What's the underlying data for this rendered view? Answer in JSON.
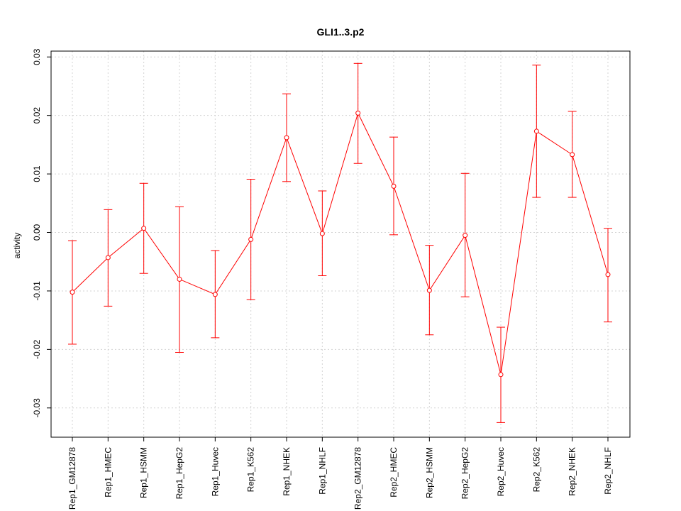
{
  "chart_data": {
    "type": "line",
    "title": "GLI1..3.p2",
    "xlabel": "",
    "ylabel": "activity",
    "ylim": [
      -0.035,
      0.031
    ],
    "yticks": [
      -0.03,
      -0.02,
      -0.01,
      0.0,
      0.01,
      0.02,
      0.03
    ],
    "ytick_labels": [
      "-0.03",
      "-0.02",
      "-0.01",
      "0.00",
      "0.01",
      "0.02",
      "0.03"
    ],
    "grid": true,
    "series_color": "#ff0000",
    "grid_color": "#d3d3d3",
    "categories": [
      "Rep1_GM12878",
      "Rep1_HMEC",
      "Rep1_HSMM",
      "Rep1_HepG2",
      "Rep1_Huvec",
      "Rep1_K562",
      "Rep1_NHEK",
      "Rep1_NHLF",
      "Rep2_GM12878",
      "Rep2_HMEC",
      "Rep2_HSMM",
      "Rep2_HepG2",
      "Rep2_Huvec",
      "Rep2_K562",
      "Rep2_NHEK",
      "Rep2_NHLF"
    ],
    "values": [
      -0.0102,
      -0.0043,
      0.0007,
      -0.008,
      -0.0106,
      -0.0012,
      0.0162,
      -0.0002,
      0.0204,
      0.0079,
      -0.0099,
      -0.0005,
      -0.0243,
      0.0173,
      0.0133,
      -0.0072
    ],
    "upper": [
      -0.0014,
      0.0039,
      0.0084,
      0.0044,
      -0.0031,
      0.0091,
      0.0237,
      0.0071,
      0.0289,
      0.0163,
      -0.0022,
      0.0101,
      -0.0162,
      0.0286,
      0.0207,
      0.0007
    ],
    "lower": [
      -0.0191,
      -0.0126,
      -0.007,
      -0.0205,
      -0.018,
      -0.0115,
      0.0087,
      -0.0074,
      0.0118,
      -0.0004,
      -0.0175,
      -0.011,
      -0.0325,
      0.006,
      0.006,
      -0.0153
    ]
  }
}
